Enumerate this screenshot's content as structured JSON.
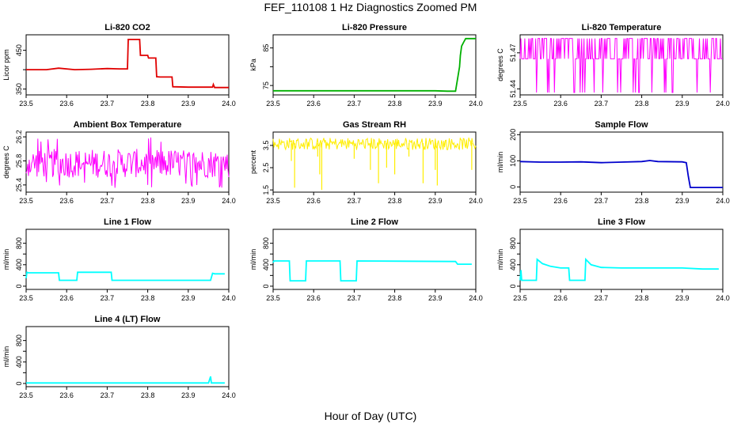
{
  "title": "FEF_110108  1 Hz Diagnostics Zoomed PM",
  "xlabel": "Hour of Day (UTC)",
  "chart_data": [
    {
      "type": "line",
      "title": "Li-820 CO2",
      "ylabel": "Licor ppm",
      "color": "#e00000",
      "xlim": [
        23.5,
        24.0
      ],
      "ylim": [
        335,
        490
      ],
      "xticks": [
        23.5,
        23.6,
        23.7,
        23.8,
        23.9,
        24.0
      ],
      "yticks": [
        350,
        400,
        450
      ],
      "ytick_labels": [
        "350",
        "",
        "450"
      ],
      "series": [
        {
          "x": [
            23.5,
            23.55,
            23.58,
            23.62,
            23.66,
            23.7,
            23.73,
            23.75,
            23.752,
            23.78,
            23.782,
            23.8,
            23.802,
            23.82,
            23.822,
            23.83,
            23.86,
            23.862,
            23.9,
            23.96,
            23.962,
            23.965,
            24.0
          ],
          "y": [
            400,
            400,
            404,
            400,
            401,
            403,
            402,
            402,
            478,
            478,
            437,
            437,
            430,
            430,
            382,
            381,
            381,
            356,
            355,
            355,
            362,
            354,
            354
          ]
        }
      ]
    },
    {
      "type": "line",
      "title": "Li-820 Pressure",
      "ylabel": "kPa",
      "color": "#00b000",
      "xlim": [
        23.5,
        24.0
      ],
      "ylim": [
        72.5,
        88.5
      ],
      "xticks": [
        23.5,
        23.6,
        23.7,
        23.8,
        23.9,
        24.0
      ],
      "yticks": [
        75,
        80,
        85
      ],
      "ytick_labels": [
        "75",
        "",
        "85"
      ],
      "series": [
        {
          "x": [
            23.5,
            23.7,
            23.9,
            23.93,
            23.95,
            23.96,
            23.962,
            23.965,
            23.97,
            23.975,
            24.0
          ],
          "y": [
            73.6,
            73.6,
            73.6,
            73.5,
            73.5,
            80,
            83,
            85.5,
            86.5,
            87.5,
            87.5
          ]
        }
      ]
    },
    {
      "type": "line",
      "title": "Li-820 Temperature",
      "ylabel": "degrees C",
      "color": "#ff00ff",
      "xlim": [
        23.5,
        24.0
      ],
      "ylim": [
        51.435,
        51.485
      ],
      "xticks": [
        23.5,
        23.6,
        23.7,
        23.8,
        23.9,
        24.0
      ],
      "yticks": [
        51.44,
        51.47
      ],
      "ytick_labels": [
        "51.44",
        "51.47"
      ],
      "baseline": 51.465,
      "high": 51.482,
      "low": 51.437
    },
    {
      "type": "line",
      "title": "Ambient Box Temperature",
      "ylabel": "degrees C",
      "color": "#ff00ff",
      "xlim": [
        23.5,
        24.0
      ],
      "ylim": [
        25.28,
        26.28
      ],
      "xticks": [
        23.5,
        23.6,
        23.7,
        23.8,
        23.9,
        24.0
      ],
      "yticks": [
        25.4,
        25.8,
        26.2
      ],
      "ytick_labels": [
        "25.4",
        "25.8",
        "26.2"
      ],
      "baseline": 25.75,
      "high": 26.0,
      "low": 25.52
    },
    {
      "type": "line",
      "title": "Gas Stream RH",
      "ylabel": "percent",
      "color": "#ffee00",
      "xlim": [
        23.5,
        24.0
      ],
      "ylim": [
        1.4,
        4.1
      ],
      "xticks": [
        23.5,
        23.6,
        23.7,
        23.8,
        23.9,
        24.0
      ],
      "yticks": [
        1.5,
        2.5,
        3.5
      ],
      "ytick_labels": [
        "1.5",
        "2.5",
        "3.5"
      ],
      "baseline": 3.6,
      "high": 3.85,
      "low": 3.3,
      "dips": [
        [
          23.545,
          2.8
        ],
        [
          23.553,
          1.6
        ],
        [
          23.61,
          3.0
        ],
        [
          23.615,
          2.2
        ],
        [
          23.62,
          1.5
        ],
        [
          23.7,
          2.9
        ],
        [
          23.74,
          2.4
        ],
        [
          23.76,
          1.8
        ],
        [
          23.78,
          2.5
        ],
        [
          23.8,
          2.2
        ],
        [
          23.835,
          3.0
        ],
        [
          23.87,
          1.8
        ],
        [
          23.9,
          2.4
        ],
        [
          23.905,
          1.7
        ],
        [
          23.99,
          2.4
        ]
      ]
    },
    {
      "type": "line",
      "title": "Sample Flow",
      "ylabel": "ml/min",
      "color": "#0000cc",
      "xlim": [
        23.5,
        24.0
      ],
      "ylim": [
        -20,
        210
      ],
      "xticks": [
        23.5,
        23.6,
        23.7,
        23.8,
        23.9,
        24.0
      ],
      "yticks": [
        0,
        100,
        200
      ],
      "ytick_labels": [
        "0",
        "100",
        "200"
      ],
      "series": [
        {
          "x": [
            23.5,
            23.55,
            23.6,
            23.65,
            23.7,
            23.75,
            23.8,
            23.82,
            23.84,
            23.9,
            23.91,
            23.915,
            23.92,
            24.0
          ],
          "y": [
            97,
            95,
            95,
            96,
            93,
            95,
            97,
            101,
            97,
            96,
            93,
            40,
            -2,
            -2
          ]
        }
      ]
    },
    {
      "type": "line",
      "title": "Line 1 Flow",
      "ylabel": "ml/min",
      "color": "#00ffff",
      "xlim": [
        23.5,
        24.0
      ],
      "ylim": [
        -60,
        1060
      ],
      "xticks": [
        23.5,
        23.6,
        23.7,
        23.8,
        23.9,
        24.0
      ],
      "yticks": [
        0,
        200,
        400,
        600,
        800
      ],
      "ytick_labels": [
        "0",
        "",
        "400",
        "",
        "800"
      ],
      "series": [
        {
          "x": [
            23.5,
            23.502,
            23.505,
            23.58,
            23.582,
            23.625,
            23.627,
            23.71,
            23.712,
            23.955,
            23.96,
            23.965,
            23.99
          ],
          "y": [
            150,
            260,
            250,
            250,
            110,
            110,
            260,
            260,
            110,
            110,
            240,
            230,
            230
          ]
        }
      ]
    },
    {
      "type": "line",
      "title": "Line 2 Flow",
      "ylabel": "ml/min",
      "color": "#00ffff",
      "xlim": [
        23.5,
        24.0
      ],
      "ylim": [
        -60,
        1060
      ],
      "xticks": [
        23.5,
        23.6,
        23.7,
        23.8,
        23.9,
        24.0
      ],
      "yticks": [
        0,
        200,
        400,
        600,
        800
      ],
      "ytick_labels": [
        "0",
        "",
        "400",
        "",
        "800"
      ],
      "series": [
        {
          "x": [
            23.5,
            23.502,
            23.54,
            23.542,
            23.58,
            23.582,
            23.665,
            23.667,
            23.705,
            23.707,
            23.95,
            23.955,
            23.99
          ],
          "y": [
            440,
            470,
            470,
            100,
            100,
            470,
            470,
            100,
            100,
            470,
            460,
            410,
            410
          ]
        }
      ]
    },
    {
      "type": "line",
      "title": "Line 3 Flow",
      "ylabel": "ml/min",
      "color": "#00ffff",
      "xlim": [
        23.5,
        24.0
      ],
      "ylim": [
        -60,
        1060
      ],
      "xticks": [
        23.5,
        23.6,
        23.7,
        23.8,
        23.9,
        24.0
      ],
      "yticks": [
        0,
        200,
        400,
        600,
        800
      ],
      "ytick_labels": [
        "0",
        "",
        "400",
        "",
        "800"
      ],
      "series": [
        {
          "x": [
            23.5,
            23.502,
            23.504,
            23.54,
            23.542,
            23.555,
            23.575,
            23.6,
            23.62,
            23.622,
            23.66,
            23.662,
            23.675,
            23.7,
            23.75,
            23.9,
            23.95,
            23.99
          ],
          "y": [
            110,
            300,
            110,
            110,
            500,
            420,
            370,
            340,
            340,
            110,
            110,
            500,
            400,
            350,
            340,
            340,
            320,
            320
          ]
        }
      ]
    },
    {
      "type": "line",
      "title": "Line 4 (LT) Flow",
      "ylabel": "ml/min",
      "color": "#00ffff",
      "xlim": [
        23.5,
        24.0
      ],
      "ylim": [
        -60,
        1060
      ],
      "xticks": [
        23.5,
        23.6,
        23.7,
        23.8,
        23.9,
        24.0
      ],
      "yticks": [
        0,
        200,
        400,
        600,
        800
      ],
      "ytick_labels": [
        "0",
        "",
        "400",
        "",
        "800"
      ],
      "series": [
        {
          "x": [
            23.5,
            23.95,
            23.955,
            23.957,
            23.96,
            23.99
          ],
          "y": [
            10,
            10,
            130,
            10,
            10,
            10
          ]
        }
      ]
    }
  ]
}
